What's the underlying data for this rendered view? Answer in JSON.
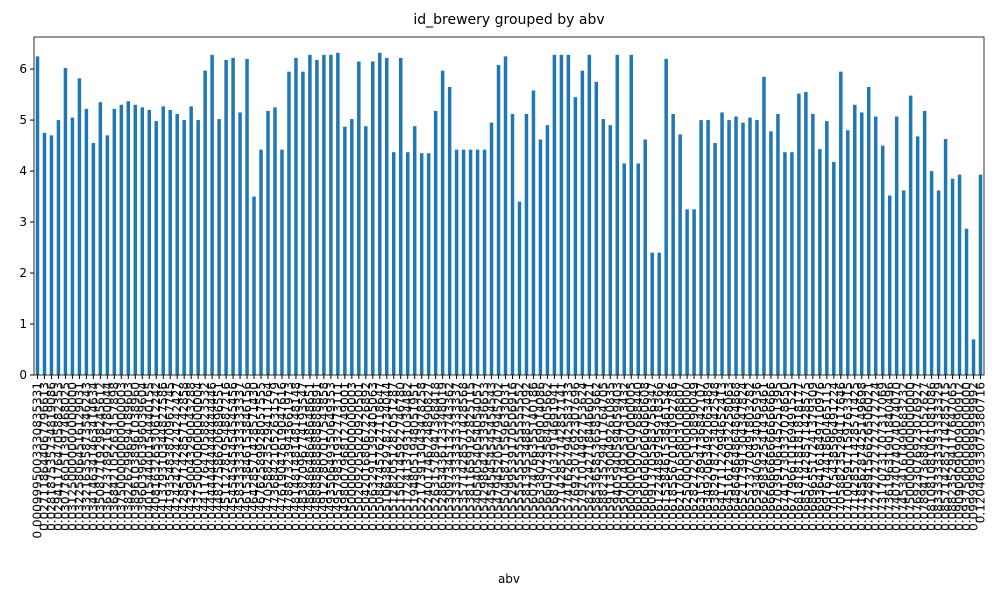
{
  "chart_data": {
    "type": "bar",
    "title": "id_brewery grouped by abv",
    "x_label": "abv",
    "color": "#1f77b4",
    "categories": [
      "0.0009995003330835331",
      "0.027118644067796613",
      "0.028187535734819086",
      "0.029411764705882353",
      "0.030776051397468025",
      "0.031250000000000000",
      "0.032258064516129031",
      "0.033216355873546243",
      "0.034146341463414634",
      "0.035087719298245612",
      "0.036123789216780044",
      "0.036842105263157898",
      "0.037500000000000003",
      "0.038226299694189603",
      "0.038961038961038960",
      "0.039603960396039604",
      "0.040154440154440155",
      "0.040816326530612242",
      "0.041379310344827586",
      "0.041935483870967745",
      "0.042424242424242427",
      "0.042857142857142858",
      "0.043290043290043288",
      "0.043750000000000004",
      "0.044117647058823532",
      "0.044444444444444446",
      "0.044827586206896551",
      "0.045112781954887216",
      "0.045454545454545456",
      "0.045833333333333337",
      "0.046153846153846156",
      "0.046428571428571430",
      "0.046762589928057555",
      "0.047058823529411764",
      "0.047368421052631579",
      "0.047619047619047616",
      "0.047887323943661973",
      "0.048148148148148148",
      "0.048387096774193547",
      "0.048648648648648651",
      "0.048888888888888891",
      "0.049122807017543858",
      "0.049350649350649353",
      "0.049579831932773111",
      "0.049800796812749001",
      "0.050000000000000003",
      "0.050209205020920501",
      "0.050420168067226892",
      "0.050632911392405063",
      "0.050847457627118647",
      "0.051063829787234044",
      "0.051282051282051287",
      "0.051502145922746780",
      "0.051724137931034482",
      "0.051948051948051951",
      "0.052173913043478258",
      "0.052401746724890827",
      "0.052631578947368418",
      "0.052863436123348019",
      "0.053097345132743362",
      "0.053333333333333337",
      "0.053571428571428568",
      "0.053811659192825115",
      "0.054054054054054057",
      "0.054298642533936653",
      "0.054545454545454543",
      "0.054794520547945202",
      "0.055045871559633031",
      "0.055299539170506916",
      "0.055555555555555552",
      "0.055813953488372092",
      "0.056074766355140186",
      "0.056338028169014086",
      "0.056603773584905662",
      "0.056872037914691941",
      "0.057142857142857141",
      "0.057416267942583733",
      "0.057692307692307696",
      "0.057971014492753624",
      "0.058252427184466021",
      "0.058536585365853662",
      "0.058823529411764705",
      "0.059113300492610835",
      "0.059405940594059403",
      "0.059701492537313432",
      "0.060000000000000005",
      "0.060301507537688440",
      "0.060606060606060608",
      "0.060913705583756347",
      "0.061224489795918366",
      "0.061538461538461542",
      "0.061855670103092786",
      "0.062176165803108807",
      "0.062500000000000000",
      "0.062827225130890049",
      "0.063157894736842107",
      "0.063492063492063489",
      "0.063829787234042548",
      "0.064171122994652413",
      "0.064516129032258063",
      "0.064864864864864868",
      "0.065217391304347824",
      "0.065573770491803282",
      "0.065934065934065936",
      "0.066298342541436461",
      "0.066666666666666666",
      "0.067039106145251395",
      "0.067415730337078650",
      "0.067796610169491525",
      "0.068181818181818177",
      "0.068571428571428575",
      "0.068965517241379309",
      "0.069364161849710976",
      "0.069767441860465115",
      "0.070175438596491224",
      "0.070588235294117646",
      "0.071005917159763315",
      "0.071428571428571425",
      "0.071856287425149698",
      "0.072289156626506021",
      "0.072727272727272724",
      "0.073170731707317069",
      "0.073619631901840496",
      "0.074074074074074070",
      "0.074534161490683232",
      "0.075000000000000000",
      "0.076923076923076927",
      "0.078947368421052627",
      "0.081081081081081086",
      "0.083333333333333329",
      "0.085714285714285715",
      "0.088235294117647065",
      "0.090909090909090912",
      "0.093750000000000000",
      "0.099999999999999992",
      "0.12046033075380716"
    ],
    "values": [
      6.25,
      4.75,
      4.7,
      5.0,
      6.02,
      5.05,
      5.82,
      5.22,
      4.55,
      5.35,
      4.7,
      5.22,
      5.3,
      5.37,
      5.3,
      5.25,
      5.2,
      4.98,
      5.27,
      5.2,
      5.12,
      5.0,
      5.27,
      5.0,
      5.97,
      6.28,
      5.02,
      6.18,
      6.22,
      5.15,
      6.2,
      3.5,
      4.42,
      5.18,
      5.25,
      4.42,
      5.95,
      6.22,
      5.95,
      6.28,
      6.18,
      6.28,
      6.28,
      6.32,
      4.87,
      5.02,
      6.15,
      4.88,
      6.15,
      6.32,
      6.22,
      4.37,
      6.22,
      4.37,
      4.88,
      4.35,
      4.35,
      5.18,
      5.97,
      5.65,
      4.42,
      4.42,
      4.42,
      4.42,
      4.42,
      4.95,
      6.08,
      6.25,
      5.12,
      3.4,
      5.12,
      5.58,
      4.62,
      4.9,
      6.28,
      6.28,
      6.28,
      5.45,
      5.97,
      6.28,
      5.75,
      5.02,
      4.9,
      6.28,
      4.15,
      6.28,
      4.15,
      4.62,
      2.4,
      2.4,
      6.2,
      5.12,
      4.72,
      3.25,
      3.25,
      5.0,
      5.0,
      4.55,
      5.15,
      5.0,
      5.07,
      4.95,
      5.05,
      5.0,
      5.85,
      4.78,
      5.12,
      4.37,
      4.37,
      5.52,
      5.55,
      5.12,
      4.43,
      4.98,
      4.18,
      5.95,
      4.8,
      5.3,
      5.15,
      5.65,
      5.07,
      4.5,
      3.52,
      5.07,
      3.62,
      5.48,
      4.68,
      5.18,
      4.0,
      3.62,
      4.63,
      3.85,
      3.93,
      2.87,
      0.7,
      3.93
    ],
    "ylim": [
      0,
      6.63
    ],
    "yticks": [
      0,
      1,
      2,
      3,
      4,
      5,
      6
    ]
  }
}
